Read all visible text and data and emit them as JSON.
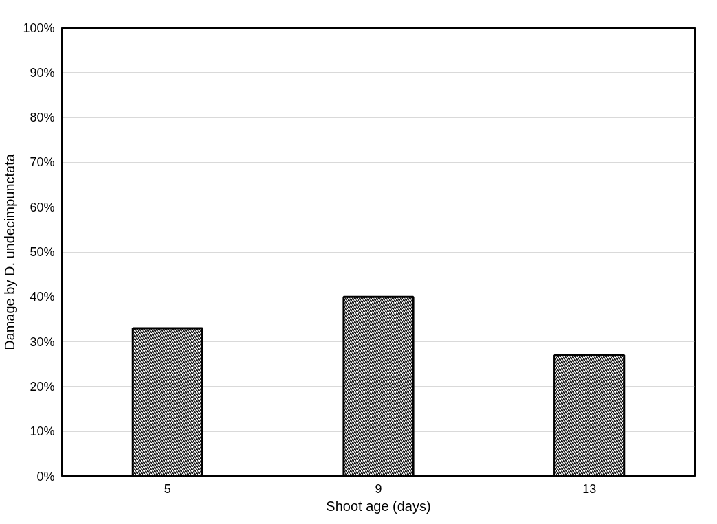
{
  "chart_data": {
    "type": "bar",
    "xlabel": "Shoot age (days)",
    "ylabel": "Damage by D. undecimpunctata",
    "categories": [
      "5",
      "9",
      "13"
    ],
    "values": [
      33,
      40,
      27
    ],
    "color": "#000000",
    "ylim": [
      0,
      100
    ],
    "yticks": [
      {
        "value": 0,
        "label": "0%"
      },
      {
        "value": 10,
        "label": "10%"
      },
      {
        "value": 20,
        "label": "20%"
      },
      {
        "value": 30,
        "label": "30%"
      },
      {
        "value": 40,
        "label": "40%"
      },
      {
        "value": 50,
        "label": "50%"
      },
      {
        "value": 60,
        "label": "60%"
      },
      {
        "value": 70,
        "label": "70%"
      },
      {
        "value": 80,
        "label": "80%"
      },
      {
        "value": 90,
        "label": "90%"
      },
      {
        "value": 100,
        "label": "100%"
      }
    ],
    "grid": "y"
  }
}
